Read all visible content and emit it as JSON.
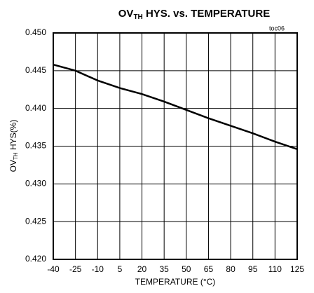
{
  "chart_data": {
    "type": "line",
    "title": [
      "OV",
      "TH",
      " HYS. vs. TEMPERATURE"
    ],
    "ylabel": [
      "OV",
      "TH",
      " HYS(%)"
    ],
    "xlabel": "TEMPERATURE (°C)",
    "annotation": "toc06",
    "x": [
      -40,
      -25,
      -10,
      5,
      20,
      35,
      50,
      65,
      80,
      95,
      110,
      125
    ],
    "values": [
      0.4458,
      0.445,
      0.4437,
      0.4427,
      0.4419,
      0.4409,
      0.4398,
      0.4387,
      0.4377,
      0.4367,
      0.4356,
      0.4346
    ],
    "color": "#000000",
    "xlim": [
      -40,
      125
    ],
    "xticks": [
      -40,
      -25,
      -10,
      5,
      20,
      35,
      50,
      65,
      80,
      95,
      110,
      125
    ],
    "ylim": [
      0.42,
      0.45
    ],
    "yticks": [
      {
        "value": 0.42,
        "label": "0.420"
      },
      {
        "value": 0.425,
        "label": "0.425"
      },
      {
        "value": 0.43,
        "label": "0.430"
      },
      {
        "value": 0.435,
        "label": "0.435"
      },
      {
        "value": 0.44,
        "label": "0.440"
      },
      {
        "value": 0.445,
        "label": "0.445"
      },
      {
        "value": 0.45,
        "label": "0.450"
      }
    ],
    "grid": true
  }
}
